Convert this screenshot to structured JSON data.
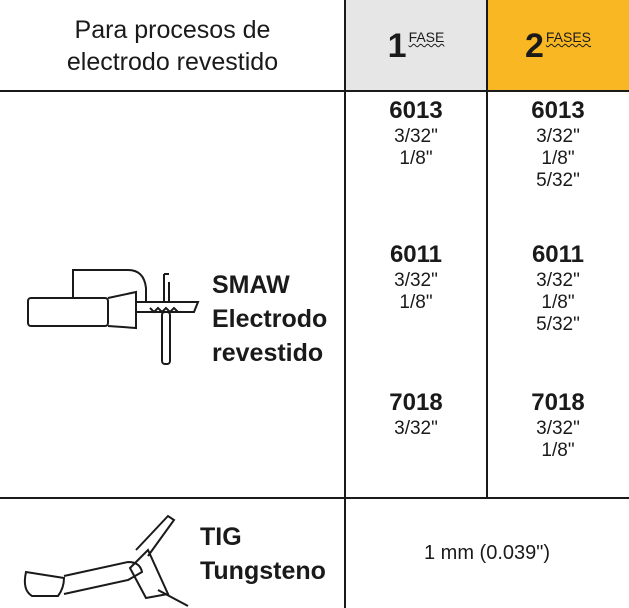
{
  "header": {
    "title_lines": [
      "Para procesos de",
      "electrodo revestido"
    ],
    "columns": [
      {
        "number": "1",
        "label": "FASE"
      },
      {
        "number": "2",
        "label": "FASES"
      }
    ]
  },
  "rows": [
    {
      "process": "SMAW",
      "description_lines": [
        "Electrodo",
        "revestido"
      ],
      "columns": [
        [
          {
            "electrode": "6013",
            "sizes": [
              "3/32\"",
              "1/8\""
            ]
          },
          {
            "electrode": "6011",
            "sizes": [
              "3/32\"",
              "1/8\""
            ]
          },
          {
            "electrode": "7018",
            "sizes": [
              "3/32\""
            ]
          }
        ],
        [
          {
            "electrode": "6013",
            "sizes": [
              "3/32\"",
              "1/8\"",
              "5/32\""
            ]
          },
          {
            "electrode": "6011",
            "sizes": [
              "3/32\"",
              "1/8\"",
              "5/32\""
            ]
          },
          {
            "electrode": "7018",
            "sizes": [
              "3/32\"",
              "1/8\""
            ]
          }
        ]
      ]
    },
    {
      "process": "TIG",
      "description_lines": [
        "Tungsteno"
      ],
      "value": "1 mm (0.039\")"
    }
  ]
}
